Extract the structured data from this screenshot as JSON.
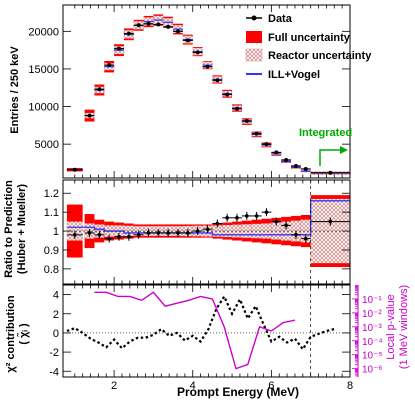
{
  "chart_data": [
    {
      "panel": "spectrum",
      "type": "line",
      "ylabel": "Entries / 250 keV",
      "ylim": [
        500,
        23500
      ],
      "yticks": [
        "5000",
        "10000",
        "15000",
        "20000"
      ],
      "x": [
        1.0,
        1.375,
        1.625,
        1.875,
        2.125,
        2.375,
        2.625,
        2.875,
        3.125,
        3.375,
        3.625,
        3.875,
        4.125,
        4.375,
        4.625,
        4.875,
        5.125,
        5.375,
        5.625,
        5.875,
        6.125,
        6.375,
        6.625,
        6.875,
        7.5
      ],
      "xwidth": [
        0.4,
        0.25,
        0.25,
        0.25,
        0.25,
        0.25,
        0.25,
        0.25,
        0.25,
        0.25,
        0.25,
        0.25,
        0.25,
        0.25,
        0.25,
        0.25,
        0.25,
        0.25,
        0.25,
        0.25,
        0.25,
        0.25,
        0.25,
        0.25,
        1.0
      ],
      "series": [
        {
          "name": "Data",
          "values": [
            1600,
            8800,
            12300,
            15500,
            17700,
            19700,
            20800,
            21000,
            20900,
            20600,
            20000,
            18800,
            17200,
            15300,
            13500,
            11600,
            9700,
            8100,
            6400,
            5000,
            3900,
            2900,
            2100,
            1700,
            1200
          ]
        },
        {
          "name": "ILL+Vogel",
          "values": [
            1600,
            8800,
            12200,
            15300,
            17500,
            19600,
            20800,
            21300,
            21500,
            21200,
            20300,
            18900,
            17300,
            15500,
            13600,
            11700,
            9800,
            8000,
            6300,
            4900,
            3700,
            2700,
            1900,
            1400,
            1150
          ]
        }
      ],
      "legend": [
        "Data",
        "Full uncertainty",
        "Reactor uncertainty",
        "ILL+Vogel"
      ],
      "annotation": "Integrated"
    },
    {
      "panel": "ratio",
      "type": "line",
      "ylabel": "Ratio to Prediction (Huber + Mueller)",
      "ylim": [
        0.72,
        1.27
      ],
      "yticks": [
        "0.8",
        "0.9",
        "1",
        "1.1",
        "1.2"
      ],
      "x": [
        1.0,
        1.375,
        1.625,
        1.875,
        2.125,
        2.375,
        2.625,
        2.875,
        3.125,
        3.375,
        3.625,
        3.875,
        4.125,
        4.375,
        4.625,
        4.875,
        5.125,
        5.375,
        5.625,
        5.875,
        6.125,
        6.375,
        6.625,
        6.875,
        7.5
      ],
      "series": [
        {
          "name": "Data",
          "values": [
            0.98,
            0.99,
            0.98,
            0.96,
            0.97,
            0.97,
            0.98,
            0.99,
            0.99,
            0.99,
            0.99,
            0.99,
            1.0,
            1.01,
            1.04,
            1.07,
            1.07,
            1.08,
            1.08,
            1.1,
            1.05,
            1.03,
            0.98,
            0.96,
            1.05
          ]
        },
        {
          "name": "ILL+Vogel",
          "values": [
            1.02,
            1.02,
            1.01,
            1.0,
            1.0,
            0.99,
            0.99,
            0.99,
            0.99,
            0.99,
            0.99,
            0.99,
            0.99,
            0.99,
            0.98,
            0.98,
            0.98,
            0.98,
            0.98,
            0.98,
            0.98,
            0.98,
            0.98,
            0.98,
            1.16
          ]
        }
      ],
      "full_uncertainty": [
        0.14,
        0.09,
        0.06,
        0.05,
        0.045,
        0.04,
        0.035,
        0.035,
        0.035,
        0.035,
        0.035,
        0.035,
        0.035,
        0.035,
        0.04,
        0.045,
        0.05,
        0.055,
        0.06,
        0.065,
        0.07,
        0.075,
        0.08,
        0.085,
        0.19
      ],
      "reactor_uncertainty": [
        0.05,
        0.04,
        0.035,
        0.03,
        0.03,
        0.028,
        0.026,
        0.026,
        0.026,
        0.026,
        0.026,
        0.027,
        0.028,
        0.029,
        0.03,
        0.032,
        0.034,
        0.036,
        0.038,
        0.04,
        0.045,
        0.05,
        0.055,
        0.06,
        0.17
      ]
    },
    {
      "panel": "chi2",
      "type": "line",
      "ylabel": "χ² contribution ( χ̃ᵢ )",
      "xlabel": "Prompt Energy (MeV)",
      "xlim": [
        0.7,
        8.0
      ],
      "xticks": [
        "2",
        "4",
        "6",
        "8"
      ],
      "ylim": [
        -4.6,
        5.0
      ],
      "yticks": [
        "-4",
        "-2",
        "0",
        "2",
        "4"
      ],
      "right_axis_label": "Local p-value (1 MeV windows)",
      "right_axis_ticks": [
        "10⁻¹",
        "10⁻²",
        "10⁻³",
        "10⁻⁴",
        "10⁻⁵",
        "10⁻⁶"
      ],
      "series": [
        {
          "name": "χ² contribution",
          "x": [
            0.8,
            1.0,
            1.2,
            1.4,
            1.6,
            1.8,
            2.0,
            2.2,
            2.4,
            2.6,
            2.8,
            3.0,
            3.2,
            3.4,
            3.6,
            3.8,
            4.0,
            4.2,
            4.4,
            4.6,
            4.8,
            5.0,
            5.2,
            5.4,
            5.6,
            5.8,
            6.0,
            6.2,
            6.4,
            6.6,
            6.8,
            7.0,
            7.2,
            7.4,
            7.6
          ],
          "values": [
            0.2,
            0.5,
            0.0,
            -0.6,
            -1.0,
            -1.5,
            -0.7,
            -1.6,
            -0.9,
            -0.5,
            -0.5,
            -0.2,
            0.4,
            -0.3,
            0.0,
            -0.8,
            -0.3,
            -0.9,
            0.4,
            2.5,
            3.8,
            2.0,
            3.5,
            1.5,
            2.8,
            0.9,
            -0.9,
            -0.4,
            -1.0,
            -0.6,
            -1.7,
            -0.4,
            -0.1,
            0.2,
            0.4
          ]
        },
        {
          "name": "Local p-value",
          "x": [
            1.5,
            1.8,
            2.1,
            2.4,
            2.7,
            3.0,
            3.3,
            3.6,
            3.9,
            4.2,
            4.5,
            4.8,
            5.1,
            5.4,
            5.7,
            6.0,
            6.3,
            6.6
          ],
          "values": [
            0.3,
            0.3,
            0.15,
            0.15,
            0.08,
            0.3,
            0.03,
            0.05,
            0.08,
            0.15,
            0.1,
            0.001,
            1e-06,
            2e-06,
            0.001,
            0.0005,
            0.002,
            0.003
          ]
        }
      ]
    }
  ],
  "colors": {
    "data": "#000000",
    "full_uncertainty": "#ff0000",
    "reactor_uncertainty": "#e0a0a0",
    "ill_vogel": "#3333ff",
    "pvalue": "#cc00cc",
    "integrated": "#00aa00"
  }
}
